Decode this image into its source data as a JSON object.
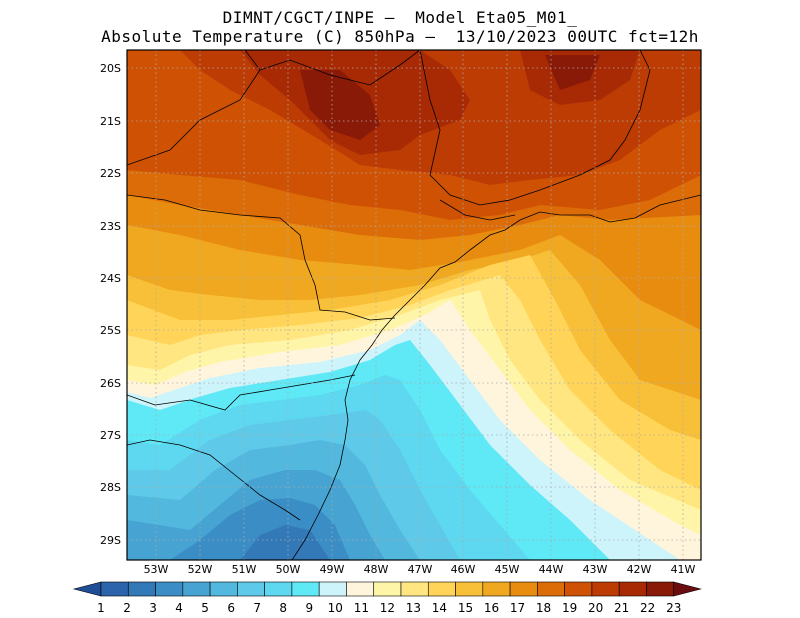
{
  "header": {
    "line1": "DIMNT/CGCT/INPE –  Model Eta05_M01_",
    "line2": "Absolute Temperature (C) 850hPa –  13/10/2023 00UTC fct=12h"
  },
  "map": {
    "lat_labels": [
      "20S",
      "21S",
      "22S",
      "23S",
      "24S",
      "25S",
      "26S",
      "27S",
      "28S",
      "29S"
    ],
    "lon_labels": [
      "53W",
      "52W",
      "51W",
      "50W",
      "49W",
      "48W",
      "47W",
      "46W",
      "45W",
      "44W",
      "43W",
      "42W",
      "41W"
    ],
    "grid": "dotted",
    "field": "temperature 850hPa",
    "warm_core": "northern interior (SP/MG), >21C",
    "cold_core": "southwest and south coast (PR/SC), 3-6C",
    "warm_tongue": "extends from northeast ocean southwestward along coast to ~28S"
  },
  "colorbar": {
    "labels": [
      "1",
      "2",
      "3",
      "4",
      "5",
      "6",
      "7",
      "8",
      "9",
      "10",
      "11",
      "12",
      "13",
      "14",
      "15",
      "16",
      "17",
      "18",
      "19",
      "20",
      "21",
      "22",
      "23"
    ],
    "colors": [
      "#1f4e96",
      "#2b64aa",
      "#3379b8",
      "#3b8ec5",
      "#46a3d2",
      "#52b8de",
      "#5ec9e8",
      "#5dd8f0",
      "#5fe8f5",
      "#cdf3fb",
      "#fff5dc",
      "#fff5a8",
      "#ffe680",
      "#ffd458",
      "#f8c038",
      "#f0a820",
      "#e88c10",
      "#dc6c08",
      "#cf5204",
      "#bc3c04",
      "#a82a04",
      "#8a1a08",
      "#6a0c10"
    ]
  }
}
